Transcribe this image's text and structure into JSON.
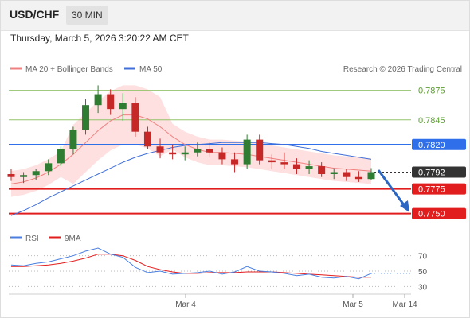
{
  "header": {
    "pair": "USD/CHF",
    "timeframe": "30 MIN",
    "timestamp": "Thursday, March 5, 2026 3:20:22 AM CET"
  },
  "legend": {
    "ma20_label": "MA 20 + Bollinger Bands",
    "ma50_label": "MA 50",
    "credit": "Research © 2026 Trading Central"
  },
  "colors": {
    "ma20": "#f08080",
    "bands_fill": "#fde0df",
    "ma50": "#3f6fd8",
    "candle_up": "#2e7d32",
    "candle_down": "#c62828",
    "target_line": "#93c36a",
    "pivot_line": "#2f6fea",
    "support_line": "#e21d1d",
    "current_badge": "#333333",
    "rsi": "#4a7fe0",
    "rsi_ma": "#e21d1d",
    "arrow": "#2a66c2"
  },
  "price_levels": [
    {
      "label": "0.7875",
      "value": 0.7875,
      "kind": "target"
    },
    {
      "label": "0.7845",
      "value": 0.7845,
      "kind": "target"
    },
    {
      "label": "0.7820",
      "value": 0.782,
      "kind": "pivot"
    },
    {
      "label": "0.7792",
      "value": 0.7792,
      "kind": "current"
    },
    {
      "label": "0.7775",
      "value": 0.7775,
      "kind": "support"
    },
    {
      "label": "0.7750",
      "value": 0.775,
      "kind": "support"
    }
  ],
  "rsi_panel": {
    "rsi_label": "RSI",
    "ma_label": "9MA",
    "ticks": [
      "70",
      "50",
      "30"
    ]
  },
  "x_axis": {
    "ticks": [
      "Mar 4",
      "Mar 5",
      "Mar 14"
    ]
  },
  "chart_data": [
    {
      "type": "candlestick",
      "title": "USD/CHF",
      "x_ticks": [
        "Mar 4",
        "Mar 5",
        "Mar 14"
      ],
      "ylim": [
        0.774,
        0.789
      ],
      "series": [
        {
          "name": "MA 20 + Bollinger Bands",
          "values": [
            0.778,
            0.7782,
            0.7786,
            0.7792,
            0.78,
            0.781,
            0.7822,
            0.7834,
            0.7844,
            0.785,
            0.785,
            0.7846,
            0.7838,
            0.7828,
            0.782,
            0.7815,
            0.7812,
            0.7812,
            0.7811,
            0.781,
            0.7808,
            0.7806,
            0.7804,
            0.7802,
            0.78,
            0.7798,
            0.7796,
            0.7795,
            0.7794,
            0.7793
          ]
        },
        {
          "name": "MA 50",
          "values": [
            0.7748,
            0.7753,
            0.7759,
            0.7766,
            0.7772,
            0.7778,
            0.7784,
            0.779,
            0.7796,
            0.7802,
            0.7807,
            0.7811,
            0.7814,
            0.7817,
            0.7819,
            0.782,
            0.7821,
            0.7822,
            0.7822,
            0.7822,
            0.7822,
            0.7821,
            0.782,
            0.7818,
            0.7816,
            0.7813,
            0.7811,
            0.7809,
            0.7807,
            0.7805
          ]
        }
      ],
      "ohlc": [
        [
          0.779,
          0.7795,
          0.7783,
          0.7787
        ],
        [
          0.7787,
          0.7792,
          0.7781,
          0.7789
        ],
        [
          0.7789,
          0.7795,
          0.7784,
          0.7793
        ],
        [
          0.7793,
          0.7805,
          0.7789,
          0.7801
        ],
        [
          0.7801,
          0.7818,
          0.7798,
          0.7815
        ],
        [
          0.7815,
          0.7838,
          0.781,
          0.7835
        ],
        [
          0.7835,
          0.7866,
          0.783,
          0.786
        ],
        [
          0.786,
          0.788,
          0.7852,
          0.7871
        ],
        [
          0.7871,
          0.7876,
          0.785,
          0.7856
        ],
        [
          0.7856,
          0.7872,
          0.7844,
          0.7862
        ],
        [
          0.7862,
          0.7868,
          0.7828,
          0.7833
        ],
        [
          0.7833,
          0.7838,
          0.7815,
          0.7818
        ],
        [
          0.7818,
          0.7826,
          0.7806,
          0.7812
        ],
        [
          0.7812,
          0.782,
          0.7805,
          0.781
        ],
        [
          0.781,
          0.7818,
          0.7804,
          0.7812
        ],
        [
          0.7812,
          0.7822,
          0.7808,
          0.7815
        ],
        [
          0.7815,
          0.7823,
          0.7808,
          0.7812
        ],
        [
          0.7812,
          0.7817,
          0.78,
          0.7805
        ],
        [
          0.7805,
          0.7812,
          0.7792,
          0.78
        ],
        [
          0.78,
          0.783,
          0.7795,
          0.7825
        ],
        [
          0.7825,
          0.783,
          0.78,
          0.7804
        ],
        [
          0.7804,
          0.781,
          0.7795,
          0.7802
        ],
        [
          0.7802,
          0.7812,
          0.7795,
          0.78
        ],
        [
          0.78,
          0.7806,
          0.779,
          0.7795
        ],
        [
          0.7795,
          0.7804,
          0.779,
          0.7798
        ],
        [
          0.7798,
          0.7802,
          0.7787,
          0.779
        ],
        [
          0.779,
          0.7796,
          0.7785,
          0.7792
        ],
        [
          0.7792,
          0.7795,
          0.7783,
          0.7787
        ],
        [
          0.7787,
          0.7793,
          0.7782,
          0.7785
        ],
        [
          0.7785,
          0.7796,
          0.7784,
          0.7792
        ]
      ],
      "annotations": [
        "0.7875",
        "0.7845",
        "0.7820",
        "0.7792",
        "0.7775",
        "0.7750"
      ]
    },
    {
      "type": "line",
      "title": "RSI",
      "yticks": [
        "70",
        "50",
        "30"
      ],
      "ylim": [
        20,
        80
      ],
      "series": [
        {
          "name": "RSI",
          "values": [
            58,
            57,
            60,
            62,
            66,
            70,
            76,
            80,
            72,
            68,
            55,
            48,
            50,
            46,
            47,
            48,
            50,
            46,
            49,
            56,
            50,
            49,
            47,
            44,
            46,
            42,
            41,
            43,
            40,
            47
          ]
        },
        {
          "name": "9MA",
          "values": [
            56,
            56,
            57,
            58,
            60,
            63,
            67,
            72,
            72,
            70,
            64,
            56,
            52,
            49,
            47,
            47,
            48,
            48,
            48,
            49,
            49,
            49,
            48,
            47,
            46,
            45,
            44,
            43,
            42,
            42
          ]
        }
      ]
    }
  ]
}
